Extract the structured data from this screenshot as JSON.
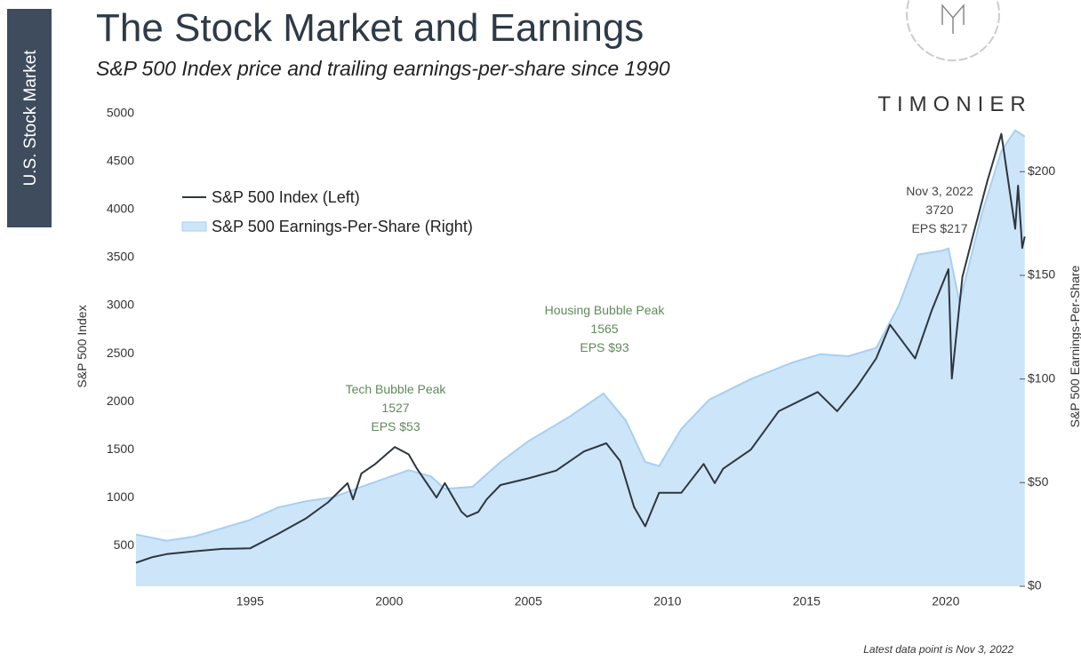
{
  "header": {
    "tab": "U.S. Stock Market",
    "logo": "TIMONIER"
  },
  "footer": "Latest data point is Nov 3, 2022",
  "chart_data": {
    "type": "line",
    "title": "The Stock Market and Earnings",
    "subtitle": "S&P 500 Index price and trailing earnings-per-share since 1990",
    "y_label": "S&P 500 Index",
    "y2_label": "S&P 500 Earnings-Per-Share",
    "xlim": [
      1990.9,
      2022.85
    ],
    "xticks": [
      1995,
      2000,
      2005,
      2010,
      2015,
      2020
    ],
    "ylim": [
      75,
      5000
    ],
    "yticks": [
      500,
      1000,
      1500,
      2000,
      2500,
      3000,
      3500,
      4000,
      4500,
      5000
    ],
    "y2lim": [
      0,
      228
    ],
    "y2ticks": [
      {
        "value": 0,
        "label": "$0"
      },
      {
        "value": 50,
        "label": "$50"
      },
      {
        "value": 100,
        "label": "$100"
      },
      {
        "value": 150,
        "label": "$150"
      },
      {
        "value": 200,
        "label": "$200"
      }
    ],
    "grid": false,
    "legend": "upper left",
    "series": [
      {
        "name": "S&P 500 Earnings-Per-Share (Right)",
        "kind": "area",
        "axis": "y2",
        "color": "#cde5f8",
        "edge_color": "#a6cff2",
        "x": [
          1990.9,
          1992,
          1993,
          1995,
          1996,
          1997,
          1998,
          1999,
          2000.7,
          2001.5,
          2002,
          2003,
          2004,
          2005,
          2006.5,
          2007.7,
          2008.5,
          2009.2,
          2009.7,
          2010.5,
          2011.5,
          2013,
          2014.5,
          2015.5,
          2016.5,
          2017.5,
          2018.3,
          2019,
          2019.9,
          2020.1,
          2020.5,
          2021.3,
          2022,
          2022.5,
          2022.84
        ],
        "values": [
          25,
          22,
          24,
          32,
          38,
          41,
          43,
          48,
          56,
          53,
          47,
          48,
          60,
          70,
          82,
          93,
          80,
          60,
          58,
          76,
          90,
          100,
          108,
          112,
          111,
          115,
          135,
          160,
          162,
          163,
          137,
          180,
          210,
          220,
          217
        ]
      },
      {
        "name": "S&P 500 Index (Left)",
        "kind": "line",
        "axis": "y",
        "color": "#2d3640",
        "x": [
          1990.9,
          1991.5,
          1992,
          1993,
          1994,
          1995,
          1996,
          1997,
          1997.8,
          1998.5,
          1998.7,
          1999,
          1999.5,
          2000.2,
          2000.7,
          2001,
          2001.7,
          2002,
          2002.6,
          2002.8,
          2003.2,
          2003.5,
          2004,
          2005,
          2006,
          2007,
          2007.8,
          2008.3,
          2008.8,
          2009.2,
          2009.7,
          2010.5,
          2011.3,
          2011.7,
          2012,
          2013,
          2014,
          2015.4,
          2016.1,
          2016.8,
          2017.5,
          2018,
          2018.9,
          2019.5,
          2020.1,
          2020.22,
          2020.6,
          2021,
          2021.5,
          2022,
          2022.5,
          2022.6,
          2022.75,
          2022.84
        ],
        "values": [
          320,
          380,
          410,
          440,
          465,
          470,
          620,
          780,
          950,
          1150,
          980,
          1250,
          1350,
          1527,
          1450,
          1300,
          1000,
          1150,
          850,
          800,
          850,
          980,
          1130,
          1200,
          1280,
          1480,
          1565,
          1380,
          900,
          700,
          1050,
          1050,
          1350,
          1150,
          1300,
          1500,
          1900,
          2100,
          1900,
          2150,
          2450,
          2800,
          2450,
          2950,
          3380,
          2240,
          3300,
          3750,
          4300,
          4790,
          3800,
          4250,
          3600,
          3720
        ]
      }
    ],
    "annotations": [
      {
        "lines": [
          "Tech Bubble Peak",
          "1527",
          "EPS $53"
        ]
      },
      {
        "lines": [
          "Housing Bubble Peak",
          "1565",
          "EPS $93"
        ]
      },
      {
        "lines": [
          "Nov 3, 2022",
          "3720",
          "EPS $217"
        ]
      }
    ]
  }
}
